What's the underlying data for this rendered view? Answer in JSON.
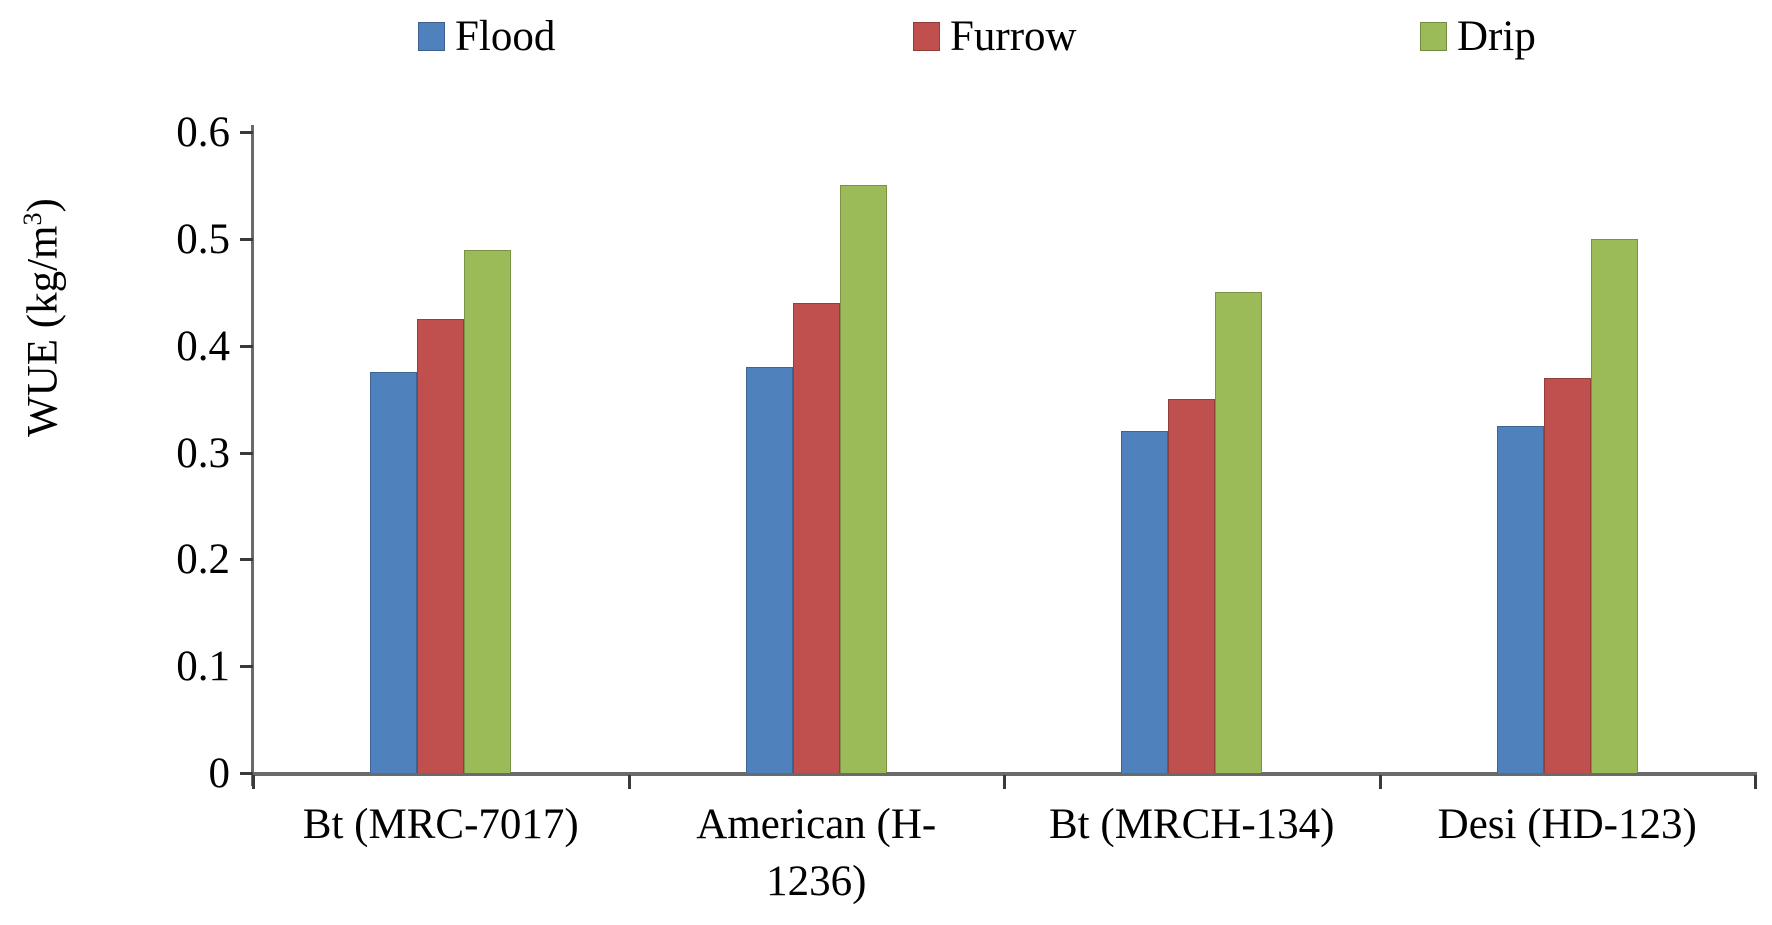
{
  "legend": {
    "items": [
      {
        "label": "Flood",
        "color": "#4F81BD"
      },
      {
        "label": "Furrow",
        "color": "#C0504D"
      },
      {
        "label": "Drip",
        "color": "#9BBB59"
      }
    ]
  },
  "y_axis": {
    "title_prefix": "WUE (kg/m",
    "title_sup": "3",
    "title_suffix": ")",
    "tick_labels": [
      "0.6",
      "0.5",
      "0.4",
      "0.3",
      "0.2",
      "0.1",
      "0"
    ]
  },
  "chart_data": {
    "type": "bar",
    "title": "",
    "xlabel": "",
    "ylabel": "WUE (kg/m3)",
    "ylim": [
      0,
      0.6
    ],
    "ytick_step": 0.1,
    "grid": false,
    "legend_position": "top",
    "categories": [
      "Bt (MRC-7017)",
      "American (H-1236)",
      "Bt (MRCH-134)",
      "Desi (HD-123)"
    ],
    "series": [
      {
        "name": "Flood",
        "color": "#4F81BD",
        "values": [
          0.375,
          0.38,
          0.32,
          0.325
        ]
      },
      {
        "name": "Furrow",
        "color": "#C0504D",
        "values": [
          0.425,
          0.44,
          0.35,
          0.37
        ]
      },
      {
        "name": "Drip",
        "color": "#9BBB59",
        "values": [
          0.49,
          0.55,
          0.45,
          0.5
        ]
      }
    ]
  }
}
